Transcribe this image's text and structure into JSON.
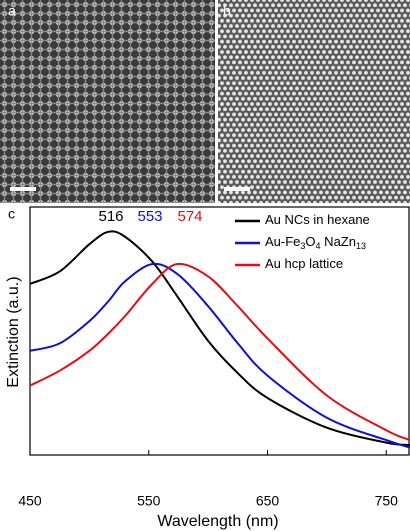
{
  "panels": {
    "a": "a",
    "b": "b"
  },
  "chart_data": {
    "type": "line",
    "panel_label": "c",
    "xlabel": "Wavelength (nm)",
    "ylabel": "Extinction (a.u.)",
    "x": [
      450,
      475,
      500,
      516,
      530,
      553,
      574,
      600,
      625,
      650,
      700,
      750,
      770
    ],
    "xlim": [
      450,
      770
    ],
    "xticks": [
      450,
      550,
      650,
      750
    ],
    "ylim": [
      0,
      1
    ],
    "series": [
      {
        "name": "Au NCs in hexane",
        "color": "#000000",
        "values": [
          0.69,
          0.74,
          0.85,
          0.9,
          0.88,
          0.78,
          0.64,
          0.46,
          0.33,
          0.23,
          0.11,
          0.05,
          0.04
        ]
      },
      {
        "name": "Au-Fe3O4 NaZn13",
        "color": "#1010d0",
        "values": [
          0.42,
          0.45,
          0.54,
          0.62,
          0.7,
          0.77,
          0.73,
          0.6,
          0.45,
          0.32,
          0.15,
          0.06,
          0.03
        ]
      },
      {
        "name": "Au hcp lattice",
        "color": "#e01010",
        "values": [
          0.28,
          0.34,
          0.42,
          0.49,
          0.56,
          0.69,
          0.77,
          0.72,
          0.6,
          0.47,
          0.24,
          0.1,
          0.06
        ]
      }
    ],
    "annotations": [
      {
        "text": "516",
        "color": "#000000"
      },
      {
        "text": "553",
        "color": "#1010d0"
      },
      {
        "text": "574",
        "color": "#e01010"
      }
    ]
  }
}
